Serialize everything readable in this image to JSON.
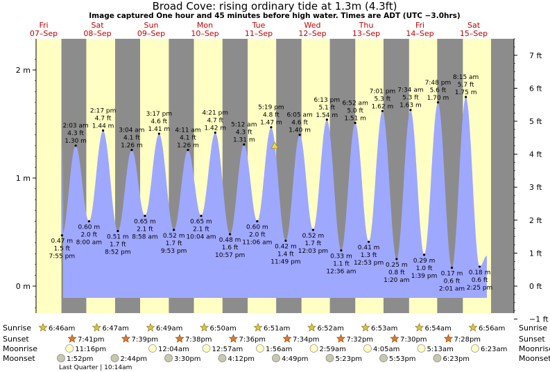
{
  "chart_data": {
    "type": "area",
    "title": "Broad Cove: rising  ordinary tide at 1.3m (4.3ft)",
    "subtitle": "Image captured One hour and 45 minutes before high water. Times are ADT (UTC −3.0hrs)",
    "xlabel": "",
    "ylabel": "",
    "ylim_m": [
      -0.25,
      2.2
    ],
    "left_ticks": [
      {
        "label": "2 m",
        "value": 2
      },
      {
        "label": "1 m",
        "value": 1
      },
      {
        "label": "0 m",
        "value": 0
      }
    ],
    "right_ticks": [
      {
        "label": "7 ft",
        "value": 7
      },
      {
        "label": "6 ft",
        "value": 6
      },
      {
        "label": "5 ft",
        "value": 5
      },
      {
        "label": "4 ft",
        "value": 4
      },
      {
        "label": "3 ft",
        "value": 3
      },
      {
        "label": "2 ft",
        "value": 2
      },
      {
        "label": "1 ft",
        "value": 1
      },
      {
        "label": "0 ft",
        "value": 0
      },
      {
        "label": "−1 ft",
        "value": -1
      }
    ],
    "days": [
      {
        "dow": "Fri",
        "date": "07–Sep"
      },
      {
        "dow": "Sat",
        "date": "08–Sep"
      },
      {
        "dow": "Sun",
        "date": "09–Sep"
      },
      {
        "dow": "Mon",
        "date": "10–Sep"
      },
      {
        "dow": "Tue",
        "date": "11–Sep"
      },
      {
        "dow": "Wed",
        "date": "12–Sep"
      },
      {
        "dow": "Thu",
        "date": "13–Sep"
      },
      {
        "dow": "Fri",
        "date": "14–Sep"
      },
      {
        "dow": "Sat",
        "date": "15–Sep"
      }
    ],
    "current": {
      "height_m": 1.3
    },
    "extremes": [
      {
        "type": "low",
        "day": 0,
        "time": "7:55 pm",
        "m": "0.47 m",
        "ft": "1.5 ft",
        "value": 0.47
      },
      {
        "type": "high",
        "day": 1,
        "time": "2:03 am",
        "m": "1.30 m",
        "ft": "4.3 ft",
        "value": 1.3
      },
      {
        "type": "low",
        "day": 1,
        "time": "8:00 am",
        "m": "0.60 m",
        "ft": "2.0 ft",
        "value": 0.6
      },
      {
        "type": "high",
        "day": 1,
        "time": "2:17 pm",
        "m": "1.44 m",
        "ft": "4.7 ft",
        "value": 1.44
      },
      {
        "type": "low",
        "day": 1,
        "time": "8:52 pm",
        "m": "0.51 m",
        "ft": "1.7 ft",
        "value": 0.51
      },
      {
        "type": "high",
        "day": 2,
        "time": "3:04 am",
        "m": "1.26 m",
        "ft": "4.1 ft",
        "value": 1.26
      },
      {
        "type": "low",
        "day": 2,
        "time": "8:58 am",
        "m": "0.65 m",
        "ft": "2.1 ft",
        "value": 0.65
      },
      {
        "type": "high",
        "day": 2,
        "time": "3:17 pm",
        "m": "1.41 m",
        "ft": "4.6 ft",
        "value": 1.41
      },
      {
        "type": "low",
        "day": 2,
        "time": "9:53 pm",
        "m": "0.52 m",
        "ft": "1.7 ft",
        "value": 0.52
      },
      {
        "type": "high",
        "day": 3,
        "time": "4:11 am",
        "m": "1.26 m",
        "ft": "4.1 ft",
        "value": 1.26
      },
      {
        "type": "low",
        "day": 3,
        "time": "10:04 am",
        "m": "0.65 m",
        "ft": "2.1 ft",
        "value": 0.65
      },
      {
        "type": "high",
        "day": 3,
        "time": "4:21 pm",
        "m": "1.42 m",
        "ft": "4.7 ft",
        "value": 1.42
      },
      {
        "type": "low",
        "day": 3,
        "time": "10:57 pm",
        "m": "0.48 m",
        "ft": "1.6 ft",
        "value": 0.48
      },
      {
        "type": "high",
        "day": 4,
        "time": "5:12 am",
        "m": "1.31 m",
        "ft": "4.3 ft",
        "value": 1.31
      },
      {
        "type": "low",
        "day": 4,
        "time": "11:06 am",
        "m": "0.60 m",
        "ft": "2.0 ft",
        "value": 0.6
      },
      {
        "type": "high",
        "day": 4,
        "time": "5:19 pm",
        "m": "1.47 m",
        "ft": "4.8 ft",
        "value": 1.47
      },
      {
        "type": "low",
        "day": 4,
        "time": "11:49 pm",
        "m": "0.42 m",
        "ft": "1.4 ft",
        "value": 0.42
      },
      {
        "type": "high",
        "day": 5,
        "time": "6:05 am",
        "m": "1.40 m",
        "ft": "4.6 ft",
        "value": 1.4
      },
      {
        "type": "low",
        "day": 5,
        "time": "12:03 pm",
        "m": "0.52 m",
        "ft": "1.7 ft",
        "value": 0.52
      },
      {
        "type": "high",
        "day": 5,
        "time": "6:13 pm",
        "m": "1.54 m",
        "ft": "5.1 ft",
        "value": 1.54
      },
      {
        "type": "low",
        "day": 6,
        "time": "12:36 am",
        "m": "0.33 m",
        "ft": "1.1 ft",
        "value": 0.33
      },
      {
        "type": "high",
        "day": 6,
        "time": "6:52 am",
        "m": "1.51 m",
        "ft": "5.0 ft",
        "value": 1.51
      },
      {
        "type": "low",
        "day": 6,
        "time": "12:53 pm",
        "m": "0.41 m",
        "ft": "1.3 ft",
        "value": 0.41
      },
      {
        "type": "high",
        "day": 6,
        "time": "7:01 pm",
        "m": "1.62 m",
        "ft": "5.3 ft",
        "value": 1.62
      },
      {
        "type": "low",
        "day": 7,
        "time": "1:20 am",
        "m": "0.25 m",
        "ft": "0.8 ft",
        "value": 0.25
      },
      {
        "type": "high",
        "day": 7,
        "time": "7:34 am",
        "m": "1.63 m",
        "ft": "5.3 ft",
        "value": 1.63
      },
      {
        "type": "low",
        "day": 7,
        "time": "1:39 pm",
        "m": "0.29 m",
        "ft": "1.0 ft",
        "value": 0.29
      },
      {
        "type": "high",
        "day": 7,
        "time": "7:48 pm",
        "m": "1.70 m",
        "ft": "5.6 ft",
        "value": 1.7
      },
      {
        "type": "low",
        "day": 8,
        "time": "2:01 am",
        "m": "0.17 m",
        "ft": "0.6 ft",
        "value": 0.17
      },
      {
        "type": "high",
        "day": 8,
        "time": "8:15 am",
        "m": "1.75 m",
        "ft": "5.7 ft",
        "value": 1.75
      },
      {
        "type": "low",
        "day": 8,
        "time": "2:25 pm",
        "m": "0.18 m",
        "ft": "0.6 ft",
        "value": 0.18
      }
    ],
    "astro": {
      "labels": {
        "sunrise": "Sunrise",
        "sunset": "Sunset",
        "moonrise": "Moonrise",
        "moonset": "Moonset"
      },
      "sunrise": [
        {
          "day": 0,
          "time": "6:46am"
        },
        {
          "day": 1,
          "time": "6:47am"
        },
        {
          "day": 2,
          "time": "6:49am"
        },
        {
          "day": 3,
          "time": "6:50am"
        },
        {
          "day": 4,
          "time": "6:51am"
        },
        {
          "day": 5,
          "time": "6:52am"
        },
        {
          "day": 6,
          "time": "6:53am"
        },
        {
          "day": 7,
          "time": "6:54am"
        },
        {
          "day": 8,
          "time": "6:56am"
        }
      ],
      "sunset": [
        {
          "day": 0,
          "time": "7:41pm"
        },
        {
          "day": 1,
          "time": "7:39pm"
        },
        {
          "day": 2,
          "time": "7:38pm"
        },
        {
          "day": 3,
          "time": "7:36pm"
        },
        {
          "day": 4,
          "time": "7:34pm"
        },
        {
          "day": 5,
          "time": "7:32pm"
        },
        {
          "day": 6,
          "time": "7:30pm"
        },
        {
          "day": 7,
          "time": "7:28pm"
        }
      ],
      "moonrise": [
        {
          "day": 0,
          "time": "11:16pm"
        },
        {
          "day": 2,
          "time": "12:04am"
        },
        {
          "day": 3,
          "time": "12:57am"
        },
        {
          "day": 4,
          "time": "1:56am"
        },
        {
          "day": 5,
          "time": "2:59am"
        },
        {
          "day": 6,
          "time": "4:05am"
        },
        {
          "day": 7,
          "time": "5:13am"
        },
        {
          "day": 8,
          "time": "6:23am"
        }
      ],
      "moonset": [
        {
          "day": 0,
          "time": "1:52pm"
        },
        {
          "day": 1,
          "time": "2:44pm"
        },
        {
          "day": 2,
          "time": "3:30pm"
        },
        {
          "day": 3,
          "time": "4:12pm"
        },
        {
          "day": 4,
          "time": "4:49pm"
        },
        {
          "day": 5,
          "time": "5:23pm"
        },
        {
          "day": 6,
          "time": "5:53pm"
        },
        {
          "day": 7,
          "time": "6:23pm"
        }
      ],
      "moon_phase_note": "Last Quarter | 10:14am"
    },
    "colors": {
      "night": "#8c8c8c",
      "day": "#ffffc4",
      "water": "#9fa8ff",
      "day_label": "#c00000",
      "sun_star": "#d8c44a",
      "sunset_star": "#e07a2e",
      "marker": "#f0d84a"
    }
  }
}
